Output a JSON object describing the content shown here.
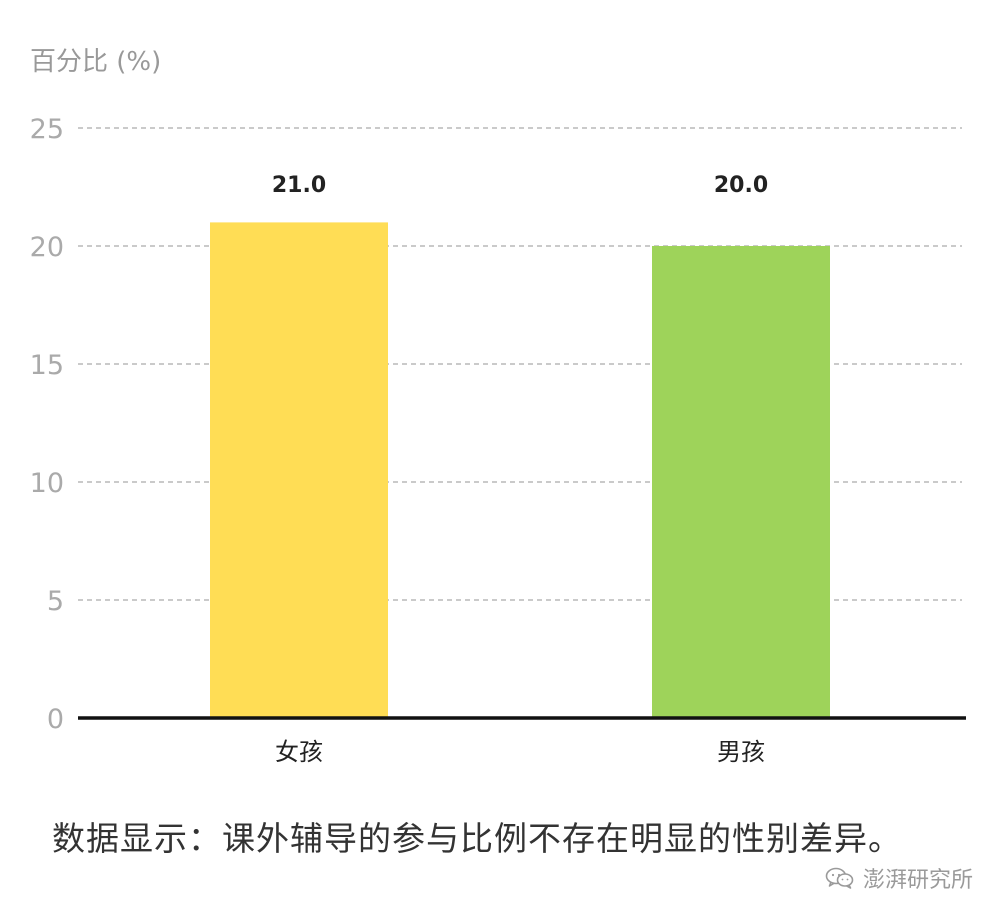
{
  "chart_data": {
    "type": "bar",
    "categories": [
      "女孩",
      "男孩"
    ],
    "values": [
      21.0,
      20.0
    ],
    "value_labels": [
      "21.0",
      "20.0"
    ],
    "colors": [
      "#FFDD55",
      "#9ED35A"
    ],
    "ylabel": "百分比 (%)",
    "ylim": [
      0,
      25
    ],
    "yticks": [
      0,
      5,
      10,
      15,
      20,
      25
    ],
    "grid": true
  },
  "caption": "数据显示：课外辅导的参与比例不存在明显的性别差异。",
  "watermark": {
    "icon": "wechat-icon",
    "text": "澎湃研究所"
  }
}
